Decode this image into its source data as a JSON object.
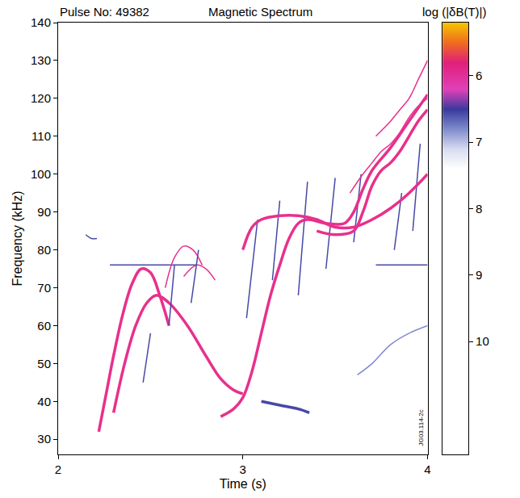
{
  "chart_data": {
    "type": "line",
    "title": "Magnetic Spectrum",
    "annotations": [
      "Pulse No: 49382",
      "JG03.114-2c"
    ],
    "x_label": "Time (s)",
    "y_label": "Frequency (kHz)",
    "xlim": [
      2,
      4
    ],
    "xticks": [
      2,
      3,
      4
    ],
    "ylim": [
      26,
      140
    ],
    "yticks": [
      30,
      40,
      50,
      60,
      70,
      80,
      90,
      100,
      110,
      120,
      130,
      140
    ],
    "grid": false,
    "series": [
      {
        "color": "#4848a8",
        "line_style": "thin",
        "x": [
          2.15,
          2.18,
          2.21
        ],
        "values": [
          84,
          83,
          83
        ]
      },
      {
        "color": "#4848a8",
        "line_style": "thin",
        "x": [
          2.28,
          2.75
        ],
        "values": [
          76,
          76
        ]
      },
      {
        "color": "#4848a8",
        "line_style": "thin",
        "x": [
          3.72,
          4.0
        ],
        "values": [
          76,
          76
        ]
      },
      {
        "color": "#e8308c",
        "line_style": "bold",
        "x": [
          2.22,
          2.26,
          2.3,
          2.35,
          2.4,
          2.45,
          2.5,
          2.55,
          2.6
        ],
        "values": [
          32,
          42,
          52,
          63,
          71,
          75,
          74,
          68,
          60
        ]
      },
      {
        "color": "#e8308c",
        "line_style": "bold",
        "x": [
          2.3,
          2.36,
          2.42,
          2.48,
          2.53,
          2.6,
          2.7,
          2.8,
          2.88,
          2.95,
          3.0
        ],
        "values": [
          37,
          50,
          60,
          66,
          68,
          66,
          60,
          52,
          46,
          43,
          42
        ]
      },
      {
        "color": "#e8308c",
        "line_style": "thin",
        "x": [
          2.58,
          2.63,
          2.68,
          2.73,
          2.78
        ],
        "values": [
          70,
          78,
          81,
          80,
          76
        ]
      },
      {
        "color": "#e8308c",
        "line_style": "thin",
        "x": [
          2.68,
          2.75,
          2.8,
          2.85
        ],
        "values": [
          73,
          76,
          75,
          72
        ]
      },
      {
        "color": "#4848a8",
        "line_style": "thin",
        "x": [
          2.46,
          2.5
        ],
        "values": [
          45,
          58
        ]
      },
      {
        "color": "#4848a8",
        "line_style": "thin",
        "x": [
          2.6,
          2.63
        ],
        "values": [
          60,
          76
        ]
      },
      {
        "color": "#4848a8",
        "line_style": "thin",
        "x": [
          2.72,
          2.76
        ],
        "values": [
          66,
          80
        ]
      },
      {
        "color": "#4848a8",
        "line_style": "thin",
        "x": [
          3.02,
          3.08
        ],
        "values": [
          62,
          88
        ]
      },
      {
        "color": "#4848a8",
        "line_style": "thin",
        "x": [
          3.16,
          3.2
        ],
        "values": [
          72,
          93
        ]
      },
      {
        "color": "#4848a8",
        "line_style": "thin",
        "x": [
          3.3,
          3.35
        ],
        "values": [
          68,
          98
        ]
      },
      {
        "color": "#4848a8",
        "line_style": "thin",
        "x": [
          3.45,
          3.5
        ],
        "values": [
          75,
          99
        ]
      },
      {
        "color": "#4848a8",
        "line_style": "thin",
        "x": [
          3.6,
          3.64
        ],
        "values": [
          82,
          100
        ]
      },
      {
        "color": "#4848a8",
        "line_style": "thin",
        "x": [
          3.82,
          3.86
        ],
        "values": [
          80,
          95
        ]
      },
      {
        "color": "#4848a8",
        "line_style": "thin",
        "x": [
          3.92,
          3.96
        ],
        "values": [
          85,
          108
        ]
      },
      {
        "color": "#e8308c",
        "line_style": "bold",
        "x": [
          2.88,
          2.95,
          3.0,
          3.05,
          3.1,
          3.15,
          3.2,
          3.25,
          3.3,
          3.35,
          3.45,
          3.55,
          3.6,
          3.65,
          3.7,
          3.8,
          3.9,
          4.0
        ],
        "values": [
          36,
          38,
          41,
          48,
          58,
          68,
          76,
          83,
          87,
          88,
          87,
          87,
          90,
          96,
          101,
          107,
          114,
          121
        ]
      },
      {
        "color": "#e8308c",
        "line_style": "bold",
        "x": [
          3.0,
          3.05,
          3.1,
          3.2,
          3.3,
          3.4,
          3.5,
          3.6,
          3.7,
          3.8,
          3.9,
          4.0
        ],
        "values": [
          80,
          86,
          88,
          89,
          89,
          88,
          86,
          86,
          88,
          91,
          95,
          100
        ]
      },
      {
        "color": "#e8308c",
        "line_style": "bold",
        "x": [
          3.4,
          3.5,
          3.6,
          3.65,
          3.7,
          3.75,
          3.8,
          3.85,
          3.9,
          3.95,
          4.0
        ],
        "values": [
          85,
          84,
          85,
          90,
          97,
          101,
          103,
          106,
          110,
          114,
          117
        ]
      },
      {
        "color": "#e8308c",
        "line_style": "thin",
        "x": [
          3.58,
          3.65,
          3.7,
          3.75,
          3.8,
          3.85,
          3.9,
          3.95,
          4.0
        ],
        "values": [
          95,
          100,
          103,
          106,
          108,
          111,
          115,
          118,
          120
        ]
      },
      {
        "color": "#e8308c",
        "line_style": "thin",
        "x": [
          3.72,
          3.8,
          3.85,
          3.9,
          3.95,
          4.0
        ],
        "values": [
          110,
          114,
          117,
          120,
          125,
          130
        ]
      },
      {
        "color": "#4848a8",
        "line_style": "bold",
        "x": [
          3.1,
          3.2,
          3.3,
          3.36
        ],
        "values": [
          40,
          39,
          38,
          37
        ]
      },
      {
        "color": "#8088cc",
        "line_style": "thin",
        "x": [
          3.62,
          3.7,
          3.8,
          3.9,
          4.0
        ],
        "values": [
          47,
          50,
          55,
          58,
          60
        ]
      }
    ],
    "colorbar": {
      "title": "log (|δB(T)|)",
      "range": [
        5.2,
        11.7
      ],
      "ticks": [
        6,
        7,
        8,
        9,
        10
      ]
    }
  }
}
